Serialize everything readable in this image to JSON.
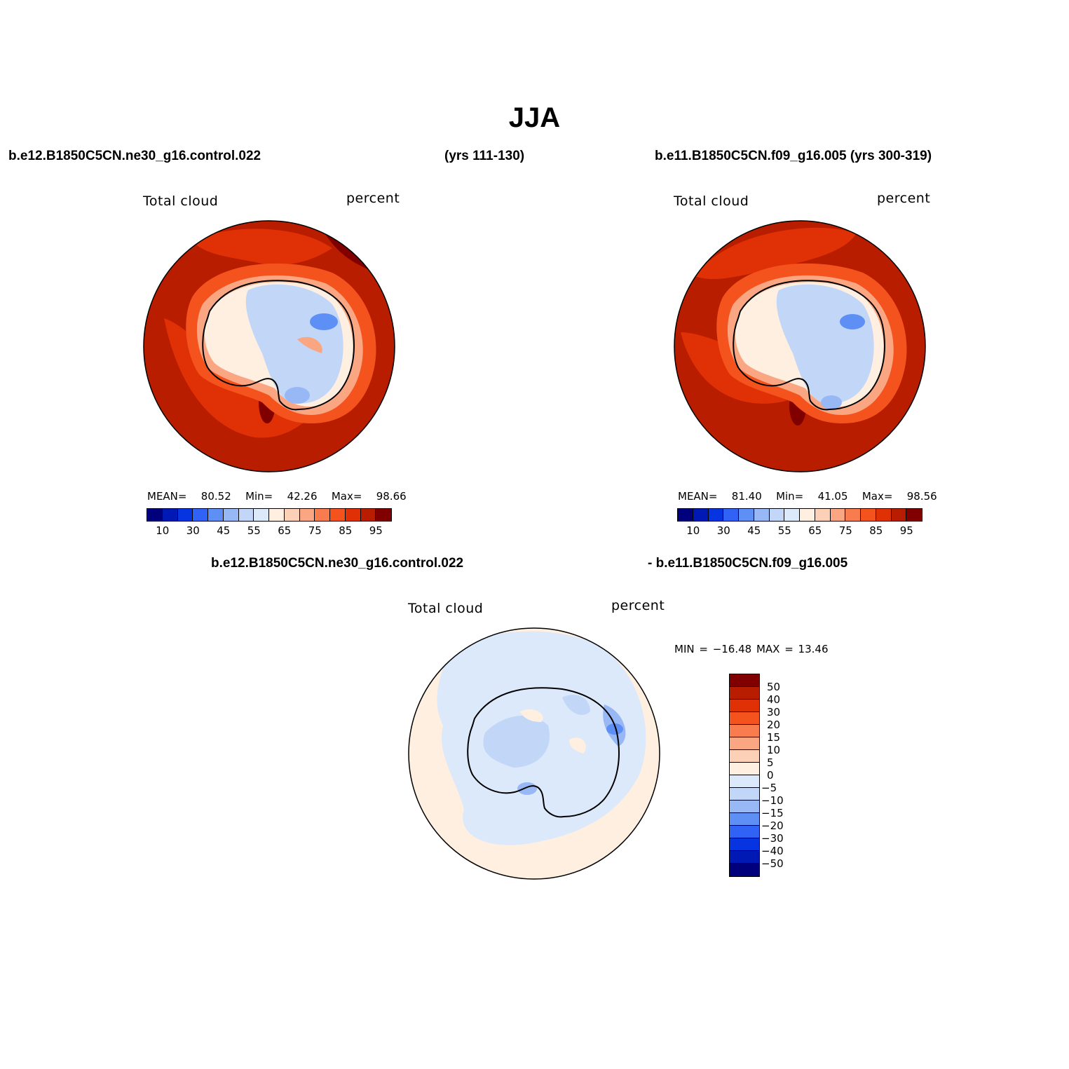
{
  "title": "JJA",
  "panel_top_left": {
    "case_name": "b.e12.B1850C5CN.ne30_g16.control.022",
    "years": "(yrs 111-130)",
    "variable": "Total cloud",
    "units": "percent",
    "stats": {
      "mean_label": "MEAN=",
      "mean": "80.52",
      "min_label": "Min=",
      "min": "42.26",
      "max_label": "Max=",
      "max": "98.66"
    }
  },
  "panel_top_right": {
    "case_name": "b.e11.B1850C5CN.f09_g16.005 (yrs 300-319)",
    "variable": "Total cloud",
    "units": "percent",
    "stats": {
      "mean_label": "MEAN=",
      "mean": "81.40",
      "min_label": "Min=",
      "min": "41.05",
      "max_label": "Max=",
      "max": "98.56"
    }
  },
  "panel_diff": {
    "case_a": "b.e12.B1850C5CN.ne30_g16.control.022",
    "case_b": "- b.e11.B1850C5CN.f09_g16.005",
    "variable": "Total cloud",
    "units": "percent",
    "minmax": "MIN = −16.48 MAX =   13.46"
  },
  "colorbar_abs": {
    "tick_labels": [
      "10",
      "30",
      "45",
      "55",
      "65",
      "75",
      "85",
      "95"
    ],
    "colors": [
      "#00007d",
      "#0018b4",
      "#0534e0",
      "#2f62f5",
      "#5e8ff5",
      "#98b8f5",
      "#c2d6f8",
      "#dbe9fb",
      "#ffefe0",
      "#fcd0b6",
      "#fba682",
      "#f97c4e",
      "#f5531e",
      "#e03005",
      "#b81d00",
      "#800000"
    ]
  },
  "colorbar_diff": {
    "tick_labels": [
      "50",
      "40",
      "30",
      "20",
      "15",
      "10",
      "5",
      "0",
      "−5",
      "−10",
      "−15",
      "−20",
      "−30",
      "−40",
      "−50"
    ],
    "colors": [
      "#800000",
      "#b81d00",
      "#e03005",
      "#f5531e",
      "#f97c4e",
      "#fba682",
      "#fcd0b6",
      "#ffefe0",
      "#dbe9fb",
      "#c2d6f8",
      "#98b8f5",
      "#5e8ff5",
      "#2f62f5",
      "#0534e0",
      "#0018b4",
      "#00007d"
    ]
  }
}
